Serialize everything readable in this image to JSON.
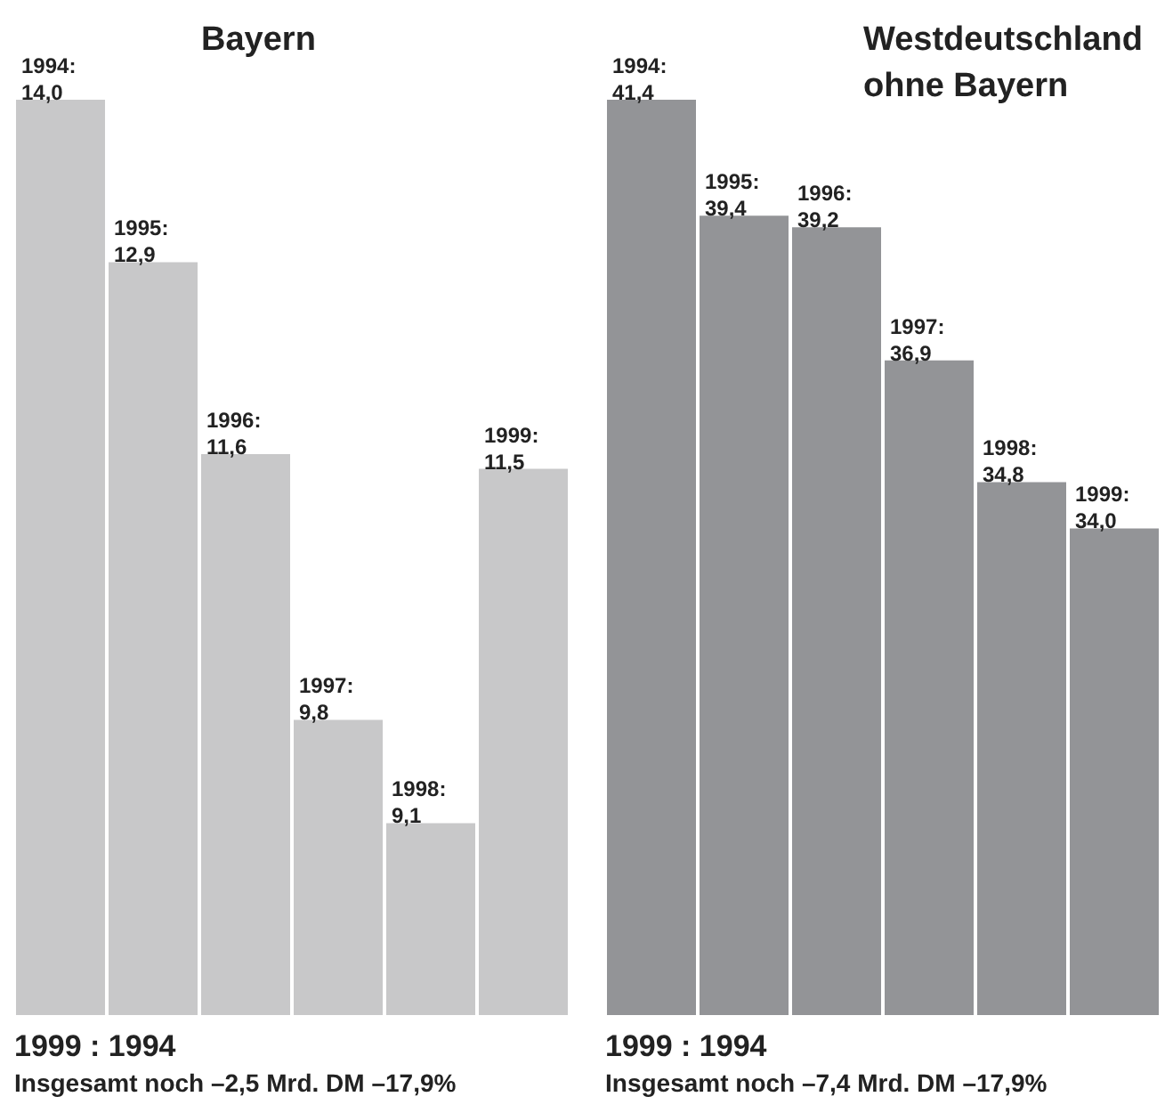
{
  "chart_data": [
    {
      "type": "bar",
      "title": "Bayern",
      "categories": [
        null,
        null,
        null,
        null,
        null,
        null
      ],
      "values": [
        14.0,
        12.9,
        11.6,
        9.8,
        9.1,
        11.5
      ],
      "value_labels": [
        "1994: 14,0",
        "1995: 12,9",
        "1996: 11,6",
        "1997: 9,8",
        "1998: 9,1",
        "1999: 11,5"
      ],
      "color": "#c8c8c9",
      "ylim": [
        7.8,
        14.0
      ],
      "tick_labels": false,
      "annotations": [
        "1999 : 1994",
        "Insgesamt noch –2,5 Mrd. DM –17,9%"
      ]
    },
    {
      "type": "bar",
      "title": "Westdeutschland ohne Bayern",
      "categories": [
        null,
        null,
        null,
        null,
        null,
        null
      ],
      "values": [
        41.4,
        39.4,
        39.2,
        36.9,
        34.8,
        34.0
      ],
      "value_labels": [
        "1994: 41,4",
        "1995: 39,4",
        "1996: 39,2",
        "1997: 36,9",
        "1998: 34,8",
        "1999: 34,0"
      ],
      "color": "#939497",
      "ylim": [
        25.6,
        41.4
      ],
      "tick_labels": false,
      "annotations": [
        "1999 : 1994",
        "Insgesamt noch –7,4 Mrd. DM –17,9%"
      ]
    }
  ]
}
